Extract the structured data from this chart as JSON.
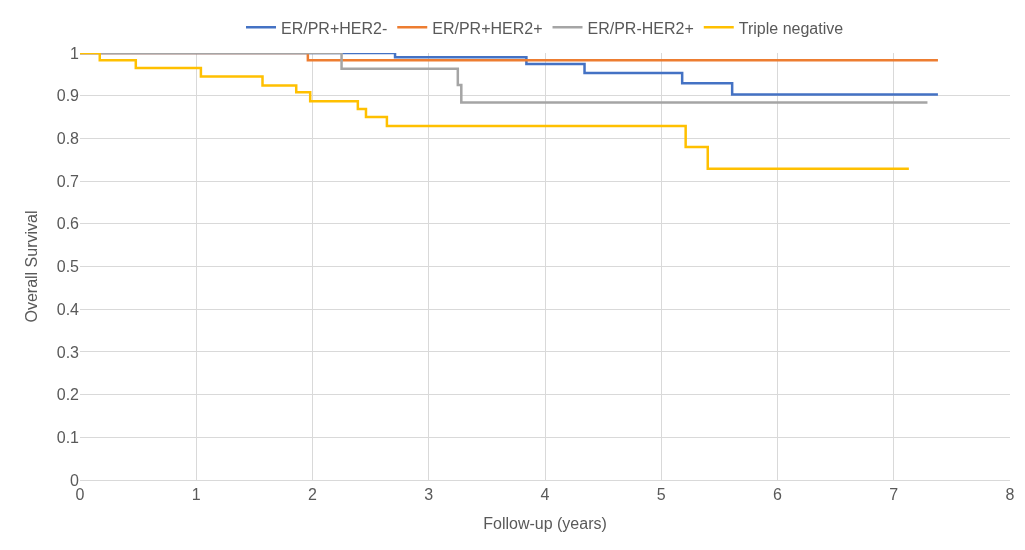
{
  "chart_data": {
    "type": "step",
    "xlabel": "Follow-up (years)",
    "ylabel": "Overall Survival",
    "xlim": [
      0,
      8
    ],
    "xticks": [
      0,
      1,
      2,
      3,
      4,
      5,
      6,
      7,
      8
    ],
    "ylim": [
      0,
      1
    ],
    "yticks": [
      0,
      0.1,
      0.2,
      0.3,
      0.4,
      0.5,
      0.6,
      0.7,
      0.8,
      0.9,
      1
    ],
    "grid": true,
    "legend": "top",
    "marker": "none",
    "line_style": "solid",
    "series": [
      {
        "name": "ER/PR+HER2-",
        "color": "#4472c4",
        "x": [
          0,
          2.71,
          3.84,
          4.34,
          5.18,
          5.61,
          7.38
        ],
        "values": [
          1,
          0.99,
          0.974,
          0.953,
          0.929,
          0.903,
          0.903
        ]
      },
      {
        "name": "ER/PR+HER2+",
        "color": "#ed7d31",
        "x": [
          0,
          1.96,
          7.38
        ],
        "values": [
          1,
          0.983,
          0.983
        ]
      },
      {
        "name": "ER/PR-HER2+",
        "color": "#a5a5a5",
        "x": [
          0,
          2.25,
          3.25,
          3.28,
          7.29
        ],
        "values": [
          1,
          0.963,
          0.925,
          0.884,
          0.884
        ]
      },
      {
        "name": "Triple negative",
        "color": "#ffc000",
        "x": [
          0,
          0.17,
          0.48,
          1.04,
          1.57,
          1.86,
          1.98,
          2.39,
          2.46,
          2.64,
          5.21,
          5.4,
          7.13
        ],
        "values": [
          1,
          0.983,
          0.965,
          0.945,
          0.924,
          0.908,
          0.887,
          0.869,
          0.85,
          0.829,
          0.78,
          0.729,
          0.729
        ]
      }
    ]
  }
}
